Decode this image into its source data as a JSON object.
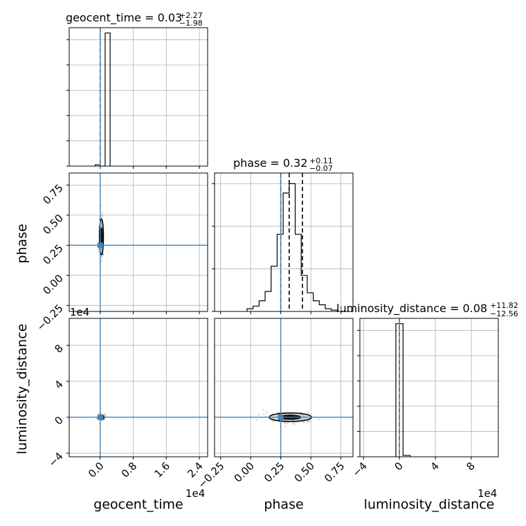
{
  "chart_data": {
    "type": "corner",
    "parameters": [
      "geocent_time",
      "phase",
      "luminosity_distance"
    ],
    "diagonal_titles": [
      {
        "base": "geocent_time = 0.03",
        "up": "+2.27",
        "down": "−1.98"
      },
      {
        "base": "phase = 0.32",
        "up": "+0.11",
        "down": "−0.07"
      },
      {
        "base": "luminosity_distance = 0.08",
        "up": "+11.82",
        "down": "−12.56"
      }
    ],
    "axis_labels": {
      "x": [
        "geocent_time",
        "phase",
        "luminosity_distance"
      ],
      "y": [
        "phase",
        "luminosity_distance"
      ]
    },
    "offset_labels": {
      "geocent_time_x": "1e4",
      "luminosity_distance_y": "1e4",
      "luminosity_distance_x": "1e4"
    },
    "ticks": {
      "geocent_time": {
        "values": [
          0.0,
          0.8,
          1.6,
          2.4
        ],
        "labels": [
          "0.0",
          "0.8",
          "1.6",
          "2.4"
        ],
        "range": [
          -0.75,
          2.6
        ],
        "scale": "x1e4"
      },
      "phase": {
        "values": [
          -0.25,
          0.0,
          0.25,
          0.5,
          0.75
        ],
        "labels": [
          "−0.25",
          "0.00",
          "0.25",
          "0.50",
          "0.75"
        ],
        "range": [
          -0.3,
          0.85
        ]
      },
      "luminosity_distance": {
        "values": [
          -4,
          0,
          4,
          8
        ],
        "labels": [
          "−4",
          "0",
          "4",
          "8"
        ],
        "range": [
          -4.4,
          11.0
        ],
        "scale": "x1e4"
      }
    },
    "truths": {
      "geocent_time": 0.0,
      "phase": 0.25,
      "luminosity_distance": 0.0
    },
    "truth_color": "#4682b4",
    "quantile_lines": {
      "geocent_time": [
        0.0
      ],
      "phase": [
        0.25,
        0.32,
        0.43
      ],
      "luminosity_distance": [
        0.0
      ]
    },
    "histograms": {
      "geocent_time": {
        "edges": [
          -0.12,
          0.0,
          0.12,
          0.24
        ],
        "counts": [
          0.01,
          0.0,
          1.0
        ]
      },
      "phase": {
        "edges": [
          -0.03,
          0.02,
          0.07,
          0.12,
          0.17,
          0.22,
          0.27,
          0.32,
          0.37,
          0.42,
          0.47,
          0.52,
          0.57,
          0.62,
          0.67,
          0.72
        ],
        "counts": [
          0.02,
          0.04,
          0.08,
          0.15,
          0.34,
          0.58,
          0.89,
          0.96,
          0.58,
          0.27,
          0.14,
          0.08,
          0.05,
          0.02,
          0.01
        ]
      },
      "luminosity_distance": {
        "edges": [
          -0.4,
          0.4,
          1.2
        ],
        "counts": [
          1.0,
          0.01
        ]
      }
    },
    "diagonal_grid_y": {
      "geocent_time": [
        0.0,
        0.19,
        0.38,
        0.57,
        0.76,
        0.95
      ],
      "phase": [
        0.0,
        0.32,
        0.64,
        0.96
      ],
      "luminosity_distance": [
        0.0,
        0.19,
        0.38,
        0.57,
        0.76,
        0.95
      ]
    },
    "contours": [
      {
        "x_param": "geocent_time",
        "y_param": "phase",
        "center": [
          0.03,
          0.32
        ],
        "half_width": [
          0.03,
          0.11
        ]
      },
      {
        "x_param": "geocent_time",
        "y_param": "luminosity_distance",
        "center": [
          0.03,
          0.0
        ],
        "half_width": [
          0.04,
          0.15
        ]
      },
      {
        "x_param": "phase",
        "y_param": "luminosity_distance",
        "center": [
          0.33,
          0.0
        ],
        "half_width": [
          0.11,
          0.35
        ]
      }
    ],
    "grid": true
  }
}
